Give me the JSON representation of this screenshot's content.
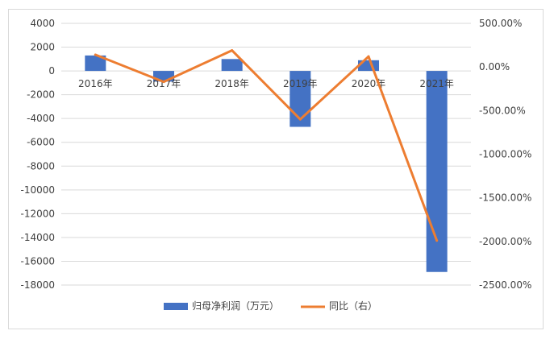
{
  "chart_data": {
    "type": "bar+line",
    "categories": [
      "2016年",
      "2017年",
      "2018年",
      "2019年",
      "2020年",
      "2021年"
    ],
    "series": [
      {
        "name": "归母净利润（万元）",
        "type": "bar",
        "axis": "left",
        "color": "#4472C4",
        "values": [
          1300,
          -900,
          1000,
          -4700,
          900,
          -16900
        ]
      },
      {
        "name": "同比（右）",
        "type": "line",
        "axis": "right",
        "color": "#ED7D31",
        "values": [
          140,
          -170,
          190,
          -600,
          120,
          -1990
        ]
      }
    ],
    "y_left": {
      "ylim": [
        -18000,
        4000
      ],
      "ticks": [
        4000,
        2000,
        0,
        -2000,
        -4000,
        -6000,
        -8000,
        -10000,
        -12000,
        -14000,
        -16000,
        -18000
      ],
      "tick_labels": [
        "4000",
        "2000",
        "0",
        "-2000",
        "-4000",
        "-6000",
        "-8000",
        "-10000",
        "-12000",
        "-14000",
        "-16000",
        "-18000"
      ]
    },
    "y_right": {
      "ylim": [
        -2500,
        500
      ],
      "ticks": [
        500,
        0,
        -500,
        -1000,
        -1500,
        -2000,
        -2500
      ],
      "tick_labels": [
        "500.00%",
        "0.00%",
        "-500.00%",
        "-1000.00%",
        "-1500.00%",
        "-2000.00%",
        "-2500.00%"
      ]
    },
    "grid": true,
    "legend": "bottom"
  }
}
